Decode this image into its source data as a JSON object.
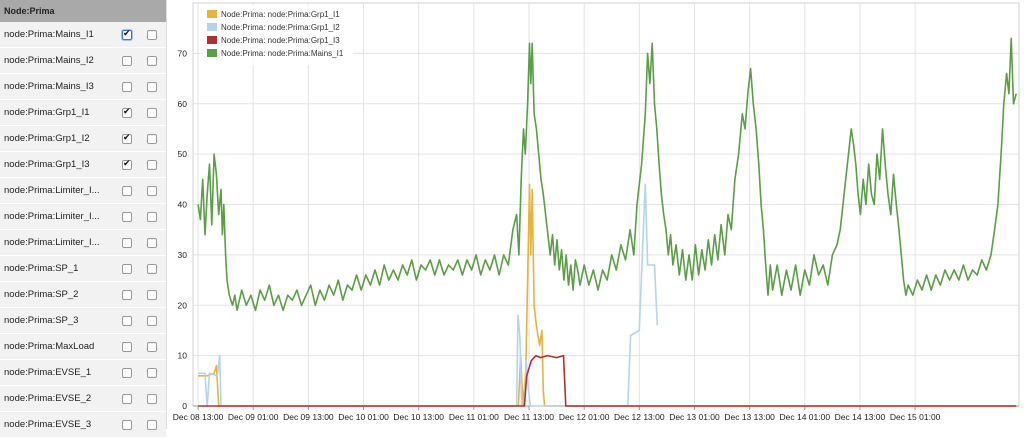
{
  "sidebar": {
    "header": "Node:Prima",
    "rows": [
      {
        "label": "node:Prima:Mains_I1",
        "c1": true,
        "c2": false
      },
      {
        "label": "node:Prima:Mains_I2",
        "c1": false,
        "c2": false
      },
      {
        "label": "node:Prima:Mains_I3",
        "c1": false,
        "c2": false
      },
      {
        "label": "node:Prima:Grp1_I1",
        "c1": true,
        "c2": false
      },
      {
        "label": "node:Prima:Grp1_I2",
        "c1": true,
        "c2": false
      },
      {
        "label": "node:Prima:Grp1_I3",
        "c1": true,
        "c2": false
      },
      {
        "label": "node:Prima:Limiter_I...",
        "c1": false,
        "c2": false
      },
      {
        "label": "node:Prima:Limiter_I...",
        "c1": false,
        "c2": false
      },
      {
        "label": "node:Prima:Limiter_I...",
        "c1": false,
        "c2": false
      },
      {
        "label": "node:Prima:SP_1",
        "c1": false,
        "c2": false
      },
      {
        "label": "node:Prima:SP_2",
        "c1": false,
        "c2": false
      },
      {
        "label": "node:Prima:SP_3",
        "c1": false,
        "c2": false
      },
      {
        "label": "node:Prima:MaxLoad",
        "c1": false,
        "c2": false
      },
      {
        "label": "node:Prima:EVSE_1",
        "c1": false,
        "c2": false
      },
      {
        "label": "node:Prima:EVSE_2",
        "c1": false,
        "c2": false
      },
      {
        "label": "node:Prima:EVSE_3",
        "c1": false,
        "c2": false
      }
    ]
  },
  "chart_data": {
    "type": "line",
    "ylim": [
      0,
      80
    ],
    "yticks": [
      0,
      10,
      20,
      30,
      40,
      50,
      60,
      70
    ],
    "xticks": [
      "Dec 08 13:00",
      "Dec 09 01:00",
      "Dec 09 13:00",
      "Dec 10 01:00",
      "Dec 10 13:00",
      "Dec 11 01:00",
      "Dec 11 13:00",
      "Dec 12 01:00",
      "Dec 12 13:00",
      "Dec 13 01:00",
      "Dec 13 13:00",
      "Dec 14 01:00",
      "Dec 14 13:00",
      "Dec 15 01:00"
    ],
    "xlim_hours": [
      -1.1,
      178.6
    ],
    "grid": true,
    "legend_position": "top-left",
    "series": [
      {
        "name": "Node:Prima: node:Prima:Grp1_I1",
        "color": "#e6b43c",
        "points": [
          [
            0,
            6
          ],
          [
            2,
            6
          ],
          [
            3.5,
            6.5
          ],
          [
            4.0,
            8
          ],
          [
            4.5,
            0
          ],
          [
            69.7,
            0
          ],
          [
            70.2,
            10
          ],
          [
            70.7,
            0
          ],
          [
            71.3,
            7
          ],
          [
            72.1,
            44
          ],
          [
            72.4,
            30
          ],
          [
            72.7,
            43
          ],
          [
            73.1,
            20
          ],
          [
            73.6,
            16
          ],
          [
            74.3,
            12
          ],
          [
            74.8,
            15
          ],
          [
            75.1,
            3
          ],
          [
            75.4,
            0
          ],
          [
            178,
            0
          ]
        ]
      },
      {
        "name": "Node:Prima: node:Prima:Grp1_I2",
        "color": "#b3d4ec",
        "points": [
          [
            0,
            6.5
          ],
          [
            1.5,
            6.5
          ],
          [
            2.0,
            0
          ],
          [
            2.5,
            6.5
          ],
          [
            4.2,
            6
          ],
          [
            4.7,
            10
          ],
          [
            5.0,
            0
          ],
          [
            69.3,
            0
          ],
          [
            69.6,
            18
          ],
          [
            70.0,
            14
          ],
          [
            70.4,
            0
          ],
          [
            71.0,
            0
          ],
          [
            71.4,
            9
          ],
          [
            71.8,
            4
          ],
          [
            72.3,
            0
          ],
          [
            93.5,
            0
          ],
          [
            94.1,
            14
          ],
          [
            96.0,
            15
          ],
          [
            96.6,
            29
          ],
          [
            97.3,
            44
          ],
          [
            97.8,
            28
          ],
          [
            99.3,
            28
          ],
          [
            99.9,
            16
          ]
        ]
      },
      {
        "name": "Node:Prima: node:Prima:Grp1_I3",
        "color": "#b33030",
        "points": [
          [
            0,
            0
          ],
          [
            71.0,
            0
          ],
          [
            71.5,
            6
          ],
          [
            72.5,
            9
          ],
          [
            73.5,
            10
          ],
          [
            74.5,
            9.6
          ],
          [
            76,
            10
          ],
          [
            78,
            9.6
          ],
          [
            79.5,
            10
          ],
          [
            80,
            0
          ],
          [
            178,
            0
          ]
        ]
      },
      {
        "name": "Node:Prima: node:Prima:Mains_I1",
        "color": "#5a9e46",
        "points": [
          [
            0,
            40
          ],
          [
            0.5,
            37
          ],
          [
            1,
            45
          ],
          [
            1.5,
            34
          ],
          [
            2,
            42
          ],
          [
            2.5,
            48
          ],
          [
            3,
            36
          ],
          [
            3.5,
            50
          ],
          [
            4,
            46
          ],
          [
            4.5,
            38
          ],
          [
            5,
            43
          ],
          [
            5.3,
            34
          ],
          [
            5.6,
            40
          ],
          [
            6,
            30
          ],
          [
            6.3,
            25
          ],
          [
            6.8,
            22
          ],
          [
            7.5,
            20
          ],
          [
            8,
            22
          ],
          [
            8.5,
            19
          ],
          [
            9.5,
            23
          ],
          [
            10.5,
            20
          ],
          [
            11.5,
            22
          ],
          [
            12.5,
            19
          ],
          [
            13.5,
            23
          ],
          [
            14.5,
            21
          ],
          [
            15.5,
            24
          ],
          [
            16.5,
            20
          ],
          [
            17.5,
            22
          ],
          [
            18.5,
            19
          ],
          [
            19.5,
            22
          ],
          [
            20.5,
            21
          ],
          [
            21.5,
            23
          ],
          [
            22.5,
            20
          ],
          [
            23.5,
            22
          ],
          [
            24.5,
            24
          ],
          [
            25.5,
            20
          ],
          [
            26.5,
            23
          ],
          [
            27.5,
            21
          ],
          [
            28.5,
            24
          ],
          [
            29.5,
            22
          ],
          [
            30.5,
            25
          ],
          [
            31.5,
            21
          ],
          [
            32.5,
            24
          ],
          [
            33.5,
            23
          ],
          [
            34.5,
            26
          ],
          [
            35.5,
            23
          ],
          [
            36.5,
            26
          ],
          [
            37.5,
            24
          ],
          [
            38.5,
            27
          ],
          [
            39.5,
            24
          ],
          [
            40.5,
            28
          ],
          [
            41.5,
            25
          ],
          [
            42.5,
            27
          ],
          [
            43.5,
            25
          ],
          [
            44.5,
            28
          ],
          [
            45.5,
            26
          ],
          [
            46.5,
            29
          ],
          [
            47.5,
            25
          ],
          [
            48.5,
            28
          ],
          [
            49.5,
            27
          ],
          [
            50.5,
            29
          ],
          [
            51.5,
            26
          ],
          [
            52.5,
            29
          ],
          [
            53.5,
            26
          ],
          [
            54.5,
            28
          ],
          [
            55.5,
            27
          ],
          [
            56.5,
            29
          ],
          [
            57.5,
            26
          ],
          [
            58.5,
            29
          ],
          [
            59.5,
            27
          ],
          [
            60.5,
            30
          ],
          [
            61.5,
            26
          ],
          [
            62.5,
            29
          ],
          [
            63.5,
            27
          ],
          [
            64.5,
            30
          ],
          [
            65.5,
            26
          ],
          [
            66.5,
            30
          ],
          [
            67.5,
            28
          ],
          [
            68.5,
            35
          ],
          [
            69.3,
            38
          ],
          [
            69.8,
            30
          ],
          [
            70.3,
            45
          ],
          [
            70.8,
            55
          ],
          [
            71.2,
            50
          ],
          [
            71.7,
            60
          ],
          [
            72.1,
            72
          ],
          [
            72.4,
            64
          ],
          [
            72.7,
            72
          ],
          [
            73.1,
            58
          ],
          [
            73.6,
            55
          ],
          [
            74.1,
            50
          ],
          [
            74.6,
            45
          ],
          [
            75.1,
            42
          ],
          [
            75.6,
            38
          ],
          [
            76.1,
            34
          ],
          [
            76.6,
            30
          ],
          [
            77.1,
            34
          ],
          [
            77.6,
            28
          ],
          [
            78.1,
            33
          ],
          [
            78.6,
            27
          ],
          [
            79.1,
            31
          ],
          [
            79.6,
            25
          ],
          [
            80.1,
            30
          ],
          [
            80.6,
            24
          ],
          [
            81.1,
            28
          ],
          [
            81.6,
            23
          ],
          [
            82.1,
            29
          ],
          [
            82.6,
            27
          ],
          [
            83.1,
            24
          ],
          [
            84,
            28
          ],
          [
            85,
            24
          ],
          [
            86,
            27
          ],
          [
            87,
            23
          ],
          [
            88,
            27
          ],
          [
            89,
            25
          ],
          [
            90,
            30
          ],
          [
            91,
            27
          ],
          [
            92,
            32
          ],
          [
            93,
            29
          ],
          [
            94,
            35
          ],
          [
            94.8,
            30
          ],
          [
            95.5,
            40
          ],
          [
            96.5,
            48
          ],
          [
            97.3,
            58
          ],
          [
            97.8,
            70
          ],
          [
            98.3,
            64
          ],
          [
            98.8,
            72
          ],
          [
            99.3,
            60
          ],
          [
            99.8,
            55
          ],
          [
            100.3,
            48
          ],
          [
            100.8,
            42
          ],
          [
            101.3,
            38
          ],
          [
            101.8,
            35
          ],
          [
            102.3,
            30
          ],
          [
            102.8,
            34
          ],
          [
            103.3,
            28
          ],
          [
            104,
            32
          ],
          [
            104.7,
            26
          ],
          [
            105.4,
            31
          ],
          [
            106.1,
            25
          ],
          [
            106.8,
            30
          ],
          [
            107.5,
            25
          ],
          [
            108.2,
            32
          ],
          [
            108.9,
            26
          ],
          [
            109.6,
            31
          ],
          [
            110.3,
            27
          ],
          [
            111,
            33
          ],
          [
            111.7,
            28
          ],
          [
            112.4,
            34
          ],
          [
            113.1,
            29
          ],
          [
            113.8,
            36
          ],
          [
            114.6,
            30
          ],
          [
            115.3,
            38
          ],
          [
            116,
            35
          ],
          [
            116.8,
            45
          ],
          [
            117.6,
            50
          ],
          [
            118.4,
            58
          ],
          [
            119,
            55
          ],
          [
            119.6,
            62
          ],
          [
            120.2,
            67
          ],
          [
            120.8,
            60
          ],
          [
            121.4,
            55
          ],
          [
            122,
            48
          ],
          [
            122.5,
            40
          ],
          [
            123,
            35
          ],
          [
            123.5,
            28
          ],
          [
            124,
            22
          ],
          [
            124.5,
            28
          ],
          [
            125,
            23
          ],
          [
            126,
            28
          ],
          [
            127,
            22
          ],
          [
            128,
            27
          ],
          [
            129,
            23
          ],
          [
            130,
            28
          ],
          [
            131,
            22
          ],
          [
            132,
            27
          ],
          [
            133,
            24
          ],
          [
            134,
            30
          ],
          [
            135,
            26
          ],
          [
            136,
            28
          ],
          [
            137,
            24
          ],
          [
            138,
            30
          ],
          [
            139,
            32
          ],
          [
            139.7,
            35
          ],
          [
            140.3,
            40
          ],
          [
            140.9,
            45
          ],
          [
            141.5,
            50
          ],
          [
            142.1,
            55
          ],
          [
            142.6,
            52
          ],
          [
            143.1,
            48
          ],
          [
            143.6,
            42
          ],
          [
            144.1,
            38
          ],
          [
            144.7,
            45
          ],
          [
            145.3,
            40
          ],
          [
            145.9,
            48
          ],
          [
            146.5,
            42
          ],
          [
            147.1,
            40
          ],
          [
            147.7,
            50
          ],
          [
            148.3,
            45
          ],
          [
            148.9,
            55
          ],
          [
            149.5,
            48
          ],
          [
            150.1,
            42
          ],
          [
            150.7,
            38
          ],
          [
            151.3,
            46
          ],
          [
            151.9,
            40
          ],
          [
            152.5,
            35
          ],
          [
            153,
            30
          ],
          [
            153.5,
            25
          ],
          [
            154,
            22
          ],
          [
            154.5,
            24
          ],
          [
            155.5,
            22
          ],
          [
            156.5,
            25
          ],
          [
            157.5,
            23
          ],
          [
            158.5,
            26
          ],
          [
            159.5,
            23
          ],
          [
            160.5,
            26
          ],
          [
            161.5,
            24
          ],
          [
            162.5,
            27
          ],
          [
            163.5,
            25
          ],
          [
            164.5,
            27
          ],
          [
            165.5,
            25
          ],
          [
            166.5,
            28
          ],
          [
            167.5,
            25
          ],
          [
            168.5,
            27
          ],
          [
            169.5,
            26
          ],
          [
            170.5,
            29
          ],
          [
            171.5,
            27
          ],
          [
            172.5,
            30
          ],
          [
            173.3,
            35
          ],
          [
            174,
            40
          ],
          [
            174.7,
            50
          ],
          [
            175.3,
            60
          ],
          [
            175.9,
            66
          ],
          [
            176.4,
            62
          ],
          [
            176.9,
            73
          ],
          [
            177.4,
            60
          ],
          [
            178,
            62
          ]
        ]
      }
    ]
  }
}
